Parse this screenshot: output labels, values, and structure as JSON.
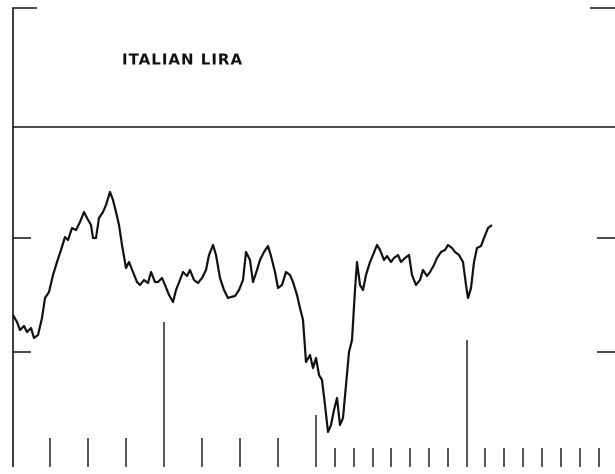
{
  "chart_data": {
    "type": "line",
    "title": "ITALIAN LIRA",
    "x": [
      1,
      5,
      8,
      12,
      15,
      19,
      22,
      26,
      30,
      33,
      37,
      41,
      45,
      49,
      53,
      56,
      60,
      64,
      68,
      72,
      75,
      79,
      81,
      84,
      87,
      91,
      94,
      98,
      101,
      104,
      107,
      110,
      114,
      117,
      121,
      125,
      128,
      132,
      136,
      139,
      143,
      146,
      150,
      153,
      157,
      161,
      164,
      168,
      171,
      175,
      178,
      182,
      186,
      190,
      194,
      197,
      201,
      204,
      208,
      212,
      216,
      219,
      223,
      227,
      231,
      234,
      238,
      241,
      245,
      248,
      252,
      256,
      259,
      263,
      266,
      270,
      274,
      278,
      281,
      285,
      288,
      291,
      294,
      298,
      301,
      304,
      307,
      310,
      313,
      316,
      319,
      322,
      325,
      328,
      331,
      334,
      337,
      340,
      343,
      345,
      348,
      351,
      354,
      358,
      361,
      365,
      368,
      372,
      375,
      379,
      382,
      386,
      389,
      393,
      397,
      400,
      404,
      408,
      411,
      415,
      418,
      422,
      425,
      429,
      433,
      436,
      440,
      443,
      447,
      451,
      454,
      456,
      459,
      462,
      465,
      469,
      472,
      476,
      480
    ],
    "values": [
      152,
      145,
      137,
      141,
      135,
      139,
      129,
      132,
      149,
      169,
      175,
      192,
      205,
      217,
      230,
      227,
      239,
      237,
      245,
      255,
      249,
      242,
      229,
      229,
      249,
      255,
      262,
      275,
      267,
      255,
      242,
      222,
      199,
      205,
      195,
      185,
      182,
      187,
      184,
      195,
      185,
      185,
      189,
      182,
      172,
      165,
      177,
      187,
      195,
      191,
      197,
      187,
      184,
      189,
      197,
      212,
      222,
      212,
      189,
      177,
      169,
      170,
      171,
      177,
      187,
      215,
      207,
      185,
      197,
      207,
      215,
      221,
      211,
      195,
      179,
      182,
      195,
      192,
      185,
      172,
      159,
      147,
      105,
      112,
      99,
      109,
      92,
      87,
      62,
      35,
      42,
      57,
      69,
      42,
      49,
      82,
      115,
      127,
      177,
      205,
      182,
      177,
      192,
      205,
      212,
      222,
      217,
      207,
      211,
      205,
      209,
      212,
      205,
      209,
      212,
      192,
      182,
      187,
      197,
      191,
      195,
      202,
      209,
      215,
      217,
      222,
      219,
      215,
      212,
      205,
      182,
      169,
      179,
      205,
      219,
      221,
      229,
      239,
      242
    ],
    "color": "#111111",
    "xlim": [
      0,
      603
    ],
    "xticks": [
      38,
      76,
      114,
      152,
      190,
      228,
      266,
      304,
      323,
      342,
      361,
      379,
      398,
      417,
      436,
      455,
      473,
      492,
      511,
      530,
      549,
      568,
      587
    ],
    "ylim": [
      0,
      340
    ],
    "yticks": [
      115,
      229
    ]
  }
}
